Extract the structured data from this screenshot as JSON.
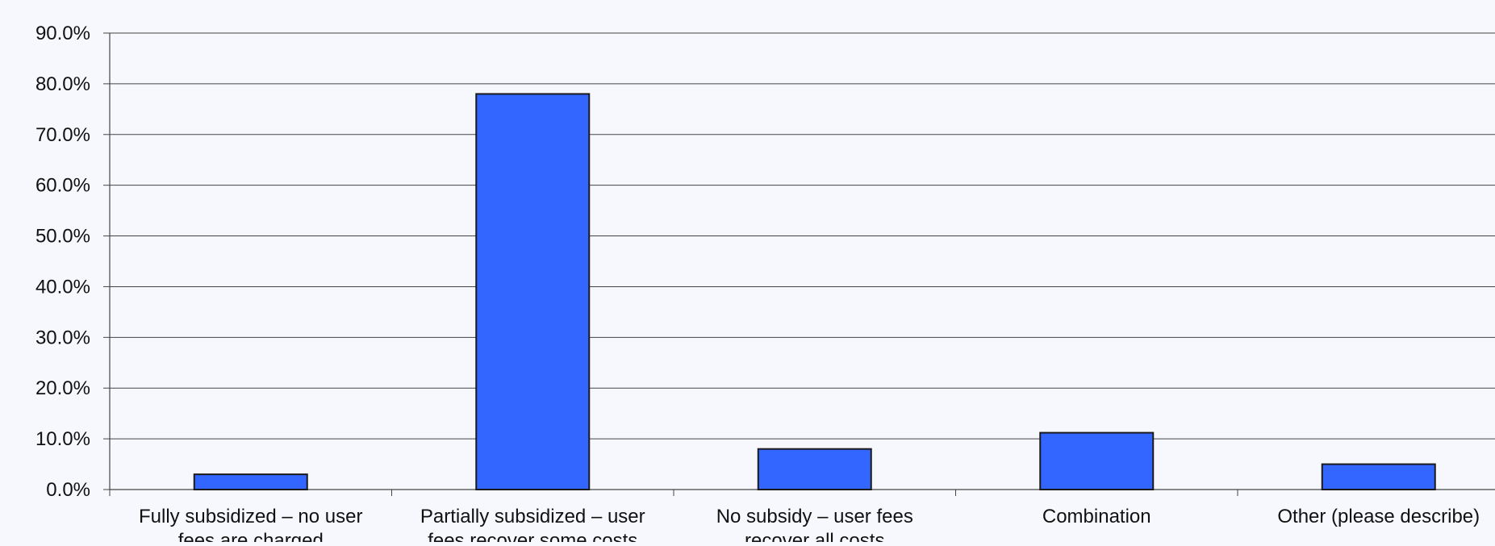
{
  "chart_data": {
    "type": "bar",
    "title": "",
    "xlabel": "",
    "ylabel": "",
    "ylim": [
      0,
      90
    ],
    "y_ticks": [
      "0.0%",
      "10.0%",
      "20.0%",
      "30.0%",
      "40.0%",
      "50.0%",
      "60.0%",
      "70.0%",
      "80.0%",
      "90.0%"
    ],
    "categories": [
      [
        "Fully subsidized – no user",
        "fees are charged"
      ],
      [
        "Partially subsidized – user",
        "fees recover some costs"
      ],
      [
        "No subsidy – user fees",
        "recover all costs"
      ],
      [
        "Combination"
      ],
      [
        "Other (please describe)"
      ]
    ],
    "values": [
      3.0,
      78.0,
      8.0,
      11.2,
      5.0
    ],
    "grid": true,
    "legend": "none",
    "colors": {
      "bar": "#3366ff",
      "bar_outline": "#1a1a1a",
      "grid": "#444444",
      "background": "#f7f8fd"
    }
  }
}
